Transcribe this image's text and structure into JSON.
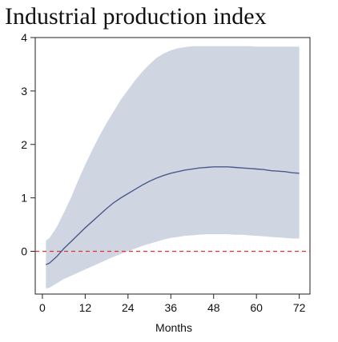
{
  "chart_data": {
    "type": "area",
    "title": "Industrial production index",
    "xlabel": "Months",
    "ylabel": "",
    "xlim": [
      -2,
      75
    ],
    "ylim": [
      -0.8,
      4.0
    ],
    "xticks": [
      0,
      12,
      24,
      36,
      48,
      60,
      72
    ],
    "yticks": [
      0,
      1,
      2,
      3,
      4
    ],
    "grid": false,
    "zero_line": {
      "y": 0,
      "color": "#e0303a",
      "style": "dashed"
    },
    "series": [
      {
        "kind": "line",
        "color": "#4a5a8c",
        "x": [
          1,
          2,
          4,
          6,
          8,
          10,
          12,
          14,
          16,
          18,
          20,
          22,
          24,
          26,
          28,
          30,
          32,
          34,
          36,
          38,
          40,
          42,
          44,
          46,
          48,
          50,
          52,
          54,
          56,
          58,
          60,
          62,
          64,
          66,
          68,
          70,
          72
        ],
        "y": [
          -0.25,
          -0.22,
          -0.1,
          0.05,
          0.18,
          0.31,
          0.44,
          0.56,
          0.68,
          0.8,
          0.91,
          1.0,
          1.08,
          1.16,
          1.24,
          1.31,
          1.37,
          1.42,
          1.46,
          1.49,
          1.52,
          1.54,
          1.56,
          1.57,
          1.58,
          1.58,
          1.58,
          1.57,
          1.56,
          1.55,
          1.54,
          1.53,
          1.51,
          1.5,
          1.49,
          1.47,
          1.46
        ]
      },
      {
        "kind": "band",
        "color": "#d0d5e2",
        "x": [
          1,
          2,
          4,
          6,
          8,
          10,
          12,
          14,
          16,
          18,
          20,
          22,
          24,
          26,
          28,
          30,
          32,
          34,
          36,
          38,
          40,
          42,
          44,
          46,
          48,
          50,
          52,
          54,
          56,
          58,
          60,
          62,
          64,
          66,
          68,
          70,
          72
        ],
        "upper": [
          0.2,
          0.25,
          0.45,
          0.72,
          1.0,
          1.32,
          1.62,
          1.9,
          2.16,
          2.4,
          2.62,
          2.84,
          3.02,
          3.2,
          3.36,
          3.5,
          3.62,
          3.7,
          3.76,
          3.8,
          3.82,
          3.84,
          3.84,
          3.84,
          3.84,
          3.84,
          3.84,
          3.84,
          3.84,
          3.84,
          3.83,
          3.83,
          3.83,
          3.83,
          3.83,
          3.83,
          3.83
        ],
        "lower": [
          -0.7,
          -0.68,
          -0.6,
          -0.52,
          -0.46,
          -0.4,
          -0.34,
          -0.28,
          -0.22,
          -0.16,
          -0.1,
          -0.05,
          0.0,
          0.05,
          0.1,
          0.14,
          0.18,
          0.22,
          0.25,
          0.27,
          0.29,
          0.3,
          0.31,
          0.32,
          0.32,
          0.32,
          0.32,
          0.31,
          0.31,
          0.3,
          0.29,
          0.28,
          0.27,
          0.26,
          0.25,
          0.24,
          0.24
        ]
      }
    ]
  }
}
